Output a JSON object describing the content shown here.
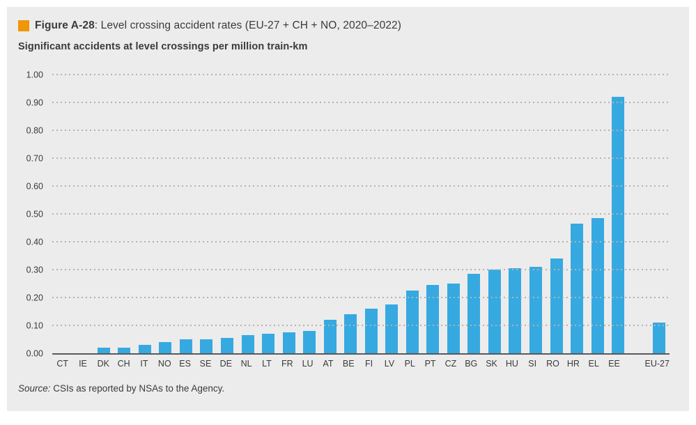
{
  "figure": {
    "label": "Figure A-28",
    "title_rest": ": Level crossing accident rates (EU-27 + CH + NO, 2020–2022)",
    "subtitle": "Significant accidents at level crossings per million train-km",
    "source_prefix": "Source:",
    "source_text": " CSIs as reported by NSAs to the Agency."
  },
  "chart_data": {
    "type": "bar",
    "title": "Level crossing accident rates (EU-27 + CH + NO, 2020–2022)",
    "ylabel": "Significant accidents at level crossings per million train-km",
    "xlabel": "",
    "categories": [
      "CT",
      "IE",
      "DK",
      "CH",
      "IT",
      "NO",
      "ES",
      "SE",
      "DE",
      "NL",
      "LT",
      "FR",
      "LU",
      "AT",
      "BE",
      "FI",
      "LV",
      "PL",
      "PT",
      "CZ",
      "BG",
      "SK",
      "HU",
      "SI",
      "RO",
      "HR",
      "EL",
      "EE",
      "EU-27"
    ],
    "values": [
      0,
      0,
      0.02,
      0.02,
      0.03,
      0.04,
      0.05,
      0.05,
      0.055,
      0.065,
      0.07,
      0.075,
      0.08,
      0.12,
      0.14,
      0.16,
      0.175,
      0.225,
      0.245,
      0.25,
      0.285,
      0.3,
      0.305,
      0.31,
      0.34,
      0.465,
      0.485,
      0.92,
      0.11
    ],
    "ylim": [
      0,
      1.0
    ],
    "ytick_step": 0.1,
    "ytick_decimals": 2,
    "grid": "horizontal-dotted",
    "legend": "none",
    "gap_before_category": "EU-27",
    "bar_color": "#36a9e1"
  },
  "colors": {
    "page_bg": "#ffffff",
    "panel_bg": "#ececec",
    "bar": "#36a9e1",
    "accent_orange": "#f09609",
    "axis_line": "#58595b",
    "gridline": "#b3b3b3",
    "text": "#3a3a39"
  }
}
